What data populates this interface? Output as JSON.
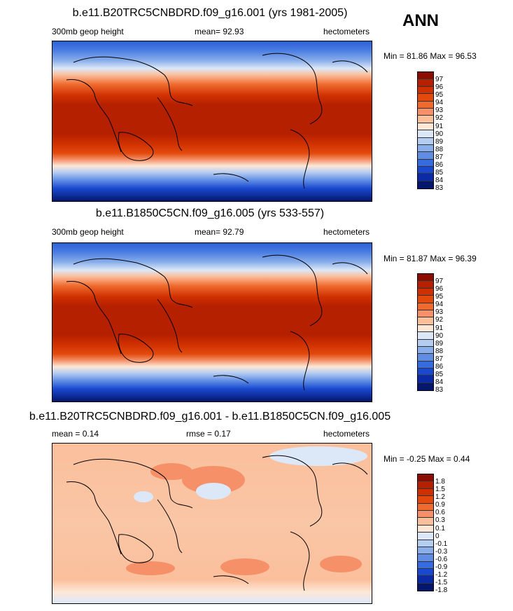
{
  "season": "ANN",
  "panels": [
    {
      "title": "b.e11.B20TRC5CNBDRD.f09_g16.001 (yrs 1981-2005)",
      "left_label": "300mb geop height",
      "center_label": "mean=  92.93",
      "right_label": "hectometers",
      "minmax": "Min =  81.86 Max =  96.53",
      "levels": [
        "97",
        "96",
        "95",
        "94",
        "93",
        "92",
        "91",
        "90",
        "89",
        "88",
        "87",
        "86",
        "85",
        "84",
        "83"
      ]
    },
    {
      "title": "b.e11.B1850C5CN.f09_g16.005 (yrs 533-557)",
      "left_label": "300mb geop height",
      "center_label": "mean=  92.79",
      "right_label": "hectometers",
      "minmax": "Min =  81.87 Max =  96.39",
      "levels": [
        "97",
        "96",
        "95",
        "94",
        "93",
        "92",
        "91",
        "90",
        "89",
        "88",
        "87",
        "86",
        "85",
        "84",
        "83"
      ]
    },
    {
      "title": "b.e11.B20TRC5CNBDRD.f09_g16.001 - b.e11.B1850C5CN.f09_g16.005",
      "left_label": "mean =   0.14",
      "center_label": "rmse =   0.17",
      "right_label": "hectometers",
      "minmax": "Min =  -0.25 Max =   0.44",
      "levels": [
        "1.8",
        "1.5",
        "1.2",
        "0.9",
        "0.6",
        "0.3",
        "0.1",
        "0",
        "-0.1",
        "-0.3",
        "-0.6",
        "-0.9",
        "-1.2",
        "-1.5",
        "-1.8"
      ]
    }
  ],
  "colors": {
    "scale": [
      "#8b0c00",
      "#b52000",
      "#cf3000",
      "#e24a0d",
      "#ef6a2e",
      "#f59068",
      "#fbbf9c",
      "#fde8d8",
      "#dce8f8",
      "#b6cdf2",
      "#8aaeea",
      "#5f8de4",
      "#376ce0",
      "#1a49d0",
      "#0a2aa6",
      "#03176e"
    ]
  }
}
